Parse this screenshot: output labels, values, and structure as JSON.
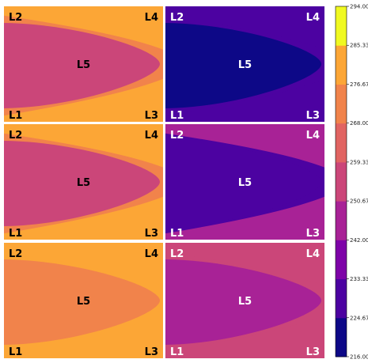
{
  "chart_data": {
    "type": "heatmap",
    "layout": {
      "rows": 3,
      "cols": 2
    },
    "panels": [
      {
        "row": 0,
        "col": 0,
        "labels": [
          "L2",
          "L4",
          "L5",
          "L1",
          "L3"
        ],
        "bands": [
          276.67,
          268.0,
          259.33
        ],
        "label_colors": {
          "L2": "#000",
          "L4": "#000",
          "L5": "#000",
          "L1": "#000",
          "L3": "#000"
        }
      },
      {
        "row": 0,
        "col": 1,
        "labels": [
          "L2",
          "L4",
          "L5",
          "L1",
          "L3"
        ],
        "bands": [
          233.33,
          224.67,
          216.0
        ],
        "label_colors": {
          "L2": "#fff",
          "L4": "#fff",
          "L5": "#fff",
          "L1": "#fff",
          "L3": "#fff"
        }
      },
      {
        "row": 1,
        "col": 0,
        "labels": [
          "L2",
          "L4",
          "L5",
          "L1",
          "L3"
        ],
        "bands": [
          276.67,
          268.0,
          259.33
        ],
        "label_colors": {
          "L2": "#000",
          "L4": "#000",
          "L5": "#000",
          "L1": "#000",
          "L3": "#000"
        }
      },
      {
        "row": 1,
        "col": 1,
        "labels": [
          "L2",
          "L4",
          "L5",
          "L1",
          "L3"
        ],
        "bands": [
          242.0,
          233.33,
          224.67
        ],
        "label_colors": {
          "L2": "#fff",
          "L4": "#fff",
          "L5": "#fff",
          "L1": "#fff",
          "L3": "#fff"
        }
      },
      {
        "row": 2,
        "col": 0,
        "labels": [
          "L2",
          "L4",
          "L5",
          "L1",
          "L3"
        ],
        "bands": [
          285.33,
          276.67,
          268.0
        ],
        "label_colors": {
          "L2": "#000",
          "L4": "#000",
          "L5": "#000",
          "L1": "#000",
          "L3": "#000"
        }
      },
      {
        "row": 2,
        "col": 1,
        "labels": [
          "L2",
          "L4",
          "L5",
          "L1",
          "L3"
        ],
        "bands": [
          259.33,
          250.67,
          242.0
        ],
        "label_colors": {
          "L2": "#fff",
          "L4": "#fff",
          "L5": "#fff",
          "L1": "#fff",
          "L3": "#fff"
        }
      }
    ],
    "colorbar": {
      "ticks": [
        "294.00",
        "285.33",
        "276.67",
        "268.00",
        "259.33",
        "250.67",
        "242.00",
        "233.33",
        "224.67",
        "216.00"
      ],
      "vmin": 216.0,
      "vmax": 294.0,
      "colors": [
        "#0d0887",
        "#4c02a1",
        "#7e03a8",
        "#a82296",
        "#cb4679",
        "#e16462",
        "#f1834b",
        "#fca636",
        "#f0f921"
      ]
    }
  }
}
